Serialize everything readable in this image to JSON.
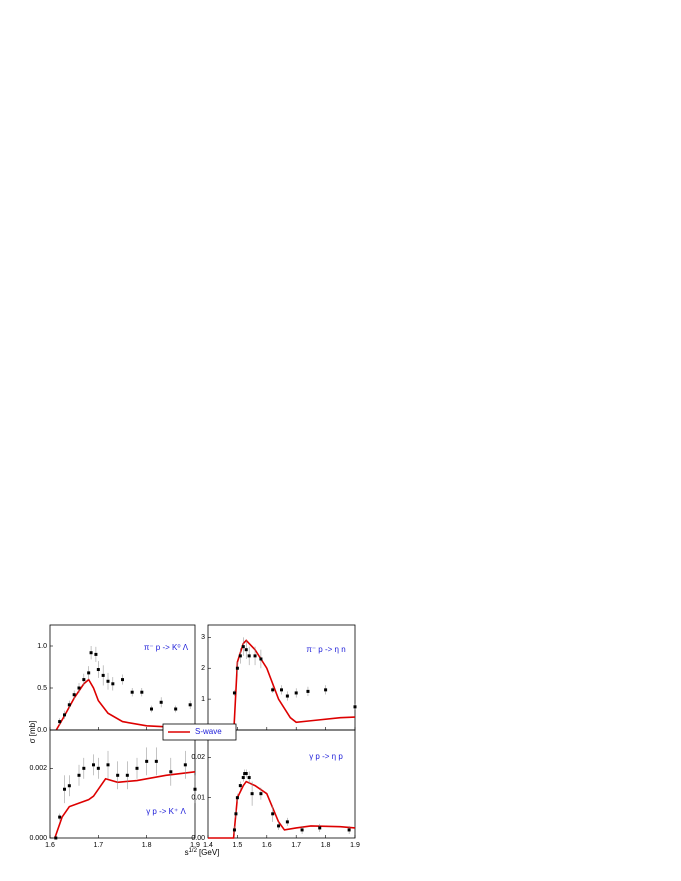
{
  "axis_labels": {
    "y_label": "σ [mb]",
    "x_label": "s",
    "x_label_sup": "1/2",
    "x_label_unit": "[GeV]"
  },
  "chart_data": [
    {
      "type": "line",
      "annotation": "π⁻ p -> K⁰ Λ",
      "xlim": [
        1.6,
        1.9
      ],
      "ylim": [
        0,
        1.25
      ],
      "xticks": [
        1.6,
        1.7,
        1.8,
        1.9
      ],
      "xtick_labels": false,
      "yticks": [
        {
          "value": 0,
          "label": "0.0"
        },
        0.5,
        {
          "value": 1,
          "label": "1.0"
        }
      ],
      "series": [
        {
          "name": "S-wave",
          "color": "#dd0000",
          "x": [
            1.613,
            1.63,
            1.65,
            1.67,
            1.68,
            1.69,
            1.7,
            1.72,
            1.75,
            1.8,
            1.85,
            1.9
          ],
          "values": [
            0,
            0.17,
            0.38,
            0.55,
            0.6,
            0.5,
            0.35,
            0.2,
            0.1,
            0.05,
            0.035,
            0.03
          ]
        },
        {
          "color": "#000000",
          "x": [
            1.62,
            1.63,
            1.64,
            1.65,
            1.66,
            1.67,
            1.68,
            1.685,
            1.695,
            1.7,
            1.71,
            1.72,
            1.73,
            1.75,
            1.77,
            1.79,
            1.81,
            1.83,
            1.86,
            1.89
          ],
          "values": [
            0.1,
            0.18,
            0.3,
            0.42,
            0.5,
            0.6,
            0.68,
            0.92,
            0.9,
            0.72,
            0.65,
            0.58,
            0.55,
            0.6,
            0.45,
            0.45,
            0.25,
            0.33,
            0.25,
            0.3
          ],
          "errors": [
            0.04,
            0.05,
            0.05,
            0.05,
            0.06,
            0.07,
            0.08,
            0.08,
            0.09,
            0.1,
            0.12,
            0.1,
            0.08,
            0.06,
            0.05,
            0.05,
            0.04,
            0.06,
            0.04,
            0.05
          ]
        }
      ]
    },
    {
      "type": "line",
      "annotation": "π⁻ p -> η n",
      "xlim": [
        1.4,
        1.9
      ],
      "ylim": [
        0,
        3.4
      ],
      "xticks": [
        1.4,
        1.5,
        1.6,
        1.7,
        1.8,
        1.9
      ],
      "xtick_labels": false,
      "yticks": [
        1,
        2,
        3
      ],
      "series": [
        {
          "color": "#dd0000",
          "x": [
            1.4,
            1.488,
            1.5,
            1.52,
            1.53,
            1.56,
            1.6,
            1.64,
            1.68,
            1.7,
            1.75,
            1.85,
            1.9
          ],
          "values": [
            0,
            0,
            2.2,
            2.8,
            2.9,
            2.6,
            2.0,
            1.0,
            0.4,
            0.25,
            0.3,
            0.4,
            0.42
          ]
        },
        {
          "color": "#000000",
          "x": [
            1.49,
            1.5,
            1.51,
            1.52,
            1.53,
            1.54,
            1.56,
            1.58,
            1.62,
            1.65,
            1.67,
            1.7,
            1.74,
            1.8,
            1.9
          ],
          "values": [
            1.2,
            2.0,
            2.4,
            2.7,
            2.6,
            2.4,
            2.4,
            2.3,
            1.3,
            1.3,
            1.1,
            1.2,
            1.25,
            1.3,
            0.75
          ],
          "errors": [
            0.1,
            0.2,
            0.25,
            0.3,
            0.3,
            0.3,
            0.3,
            0.3,
            0.1,
            0.15,
            0.15,
            0.15,
            0.15,
            0.15,
            0.1
          ]
        }
      ]
    },
    {
      "type": "line",
      "annotation": "γ p -> K⁺ Λ",
      "xlim": [
        1.6,
        1.9
      ],
      "ylim": [
        0,
        0.0031
      ],
      "xticks": [
        1.6,
        1.7,
        1.8,
        1.9
      ],
      "xtick_labels": true,
      "yticks": [
        {
          "value": 0,
          "label": "0.000"
        },
        0.002
      ],
      "series": [
        {
          "color": "#dd0000",
          "x": [
            1.61,
            1.625,
            1.64,
            1.66,
            1.68,
            1.69,
            1.715,
            1.74,
            1.78,
            1.84,
            1.9
          ],
          "values": [
            0,
            0.0006,
            0.0009,
            0.001,
            0.0011,
            0.0012,
            0.0017,
            0.0016,
            0.00165,
            0.0018,
            0.0019
          ]
        },
        {
          "color": "#000000",
          "x": [
            1.612,
            1.62,
            1.63,
            1.64,
            1.66,
            1.67,
            1.69,
            1.7,
            1.72,
            1.74,
            1.76,
            1.78,
            1.8,
            1.82,
            1.85,
            1.88,
            1.9
          ],
          "values": [
            0,
            0.0006,
            0.0014,
            0.0015,
            0.0018,
            0.002,
            0.0021,
            0.002,
            0.0021,
            0.0018,
            0.0018,
            0.002,
            0.0022,
            0.0022,
            0.0019,
            0.0021,
            0.0014
          ],
          "errors": [
            5e-05,
            0.0001,
            0.0004,
            0.0003,
            0.0003,
            0.0003,
            0.0003,
            0.0003,
            0.0004,
            0.0004,
            0.0004,
            0.0003,
            0.0004,
            0.0004,
            0.0004,
            0.0004,
            0.0004
          ]
        }
      ]
    },
    {
      "type": "line",
      "annotation": "γ p -> η p",
      "xlim": [
        1.4,
        1.9
      ],
      "ylim": [
        0,
        0.0268
      ],
      "xticks": [
        1.4,
        1.5,
        1.6,
        1.7,
        1.8,
        1.9
      ],
      "xtick_labels": true,
      "yticks": [
        {
          "value": 0,
          "label": "0.00"
        },
        0.01,
        0.02
      ],
      "series": [
        {
          "color": "#dd0000",
          "x": [
            1.4,
            1.487,
            1.5,
            1.52,
            1.53,
            1.56,
            1.6,
            1.64,
            1.66,
            1.7,
            1.75,
            1.85,
            1.9
          ],
          "values": [
            0,
            0,
            0.01,
            0.013,
            0.014,
            0.013,
            0.011,
            0.004,
            0.002,
            0.0025,
            0.003,
            0.0028,
            0.0025
          ]
        },
        {
          "color": "#000000",
          "x": [
            1.49,
            1.495,
            1.5,
            1.51,
            1.52,
            1.525,
            1.53,
            1.54,
            1.55,
            1.58,
            1.62,
            1.64,
            1.67,
            1.72,
            1.78,
            1.88
          ],
          "values": [
            0.002,
            0.006,
            0.01,
            0.013,
            0.015,
            0.016,
            0.016,
            0.015,
            0.011,
            0.011,
            0.006,
            0.003,
            0.004,
            0.002,
            0.0025,
            0.002
          ],
          "errors": [
            0.001,
            0.001,
            0.001,
            0.001,
            0.001,
            0.001,
            0.001,
            0.0015,
            0.003,
            0.0015,
            0.002,
            0.001,
            0.001,
            0.001,
            0.001,
            0.001
          ]
        }
      ]
    }
  ]
}
